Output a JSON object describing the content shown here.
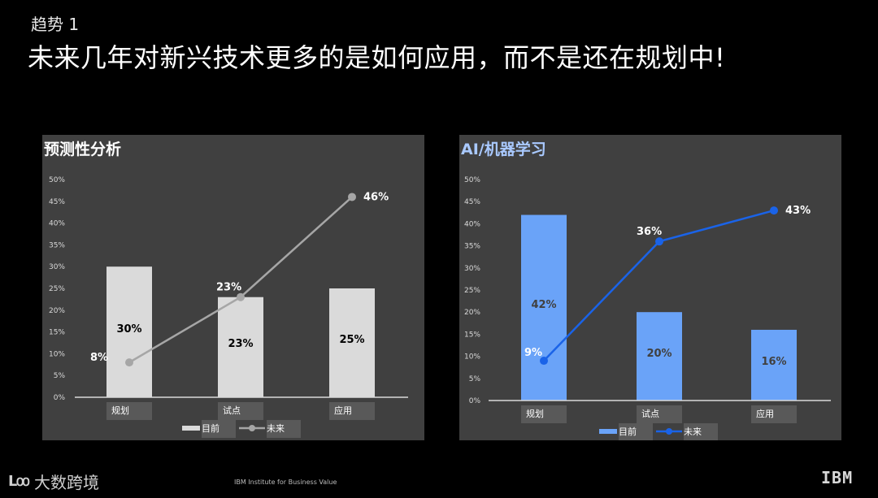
{
  "header": {
    "kicker": "趋势 1",
    "headline": "未来几年对新兴技术更多的是如何应用，而不是还在规划中!"
  },
  "footer": {
    "logo_text": "大数跨境",
    "source": "IBM Institute for Business Value",
    "brand": "IBM"
  },
  "chart_data": [
    {
      "type": "bar",
      "title": "预测性分析",
      "categories": [
        "规划",
        "试点",
        "应用"
      ],
      "series": [
        {
          "name": "目前",
          "kind": "bar",
          "values": [
            30,
            23,
            25
          ],
          "color": "#dadada"
        },
        {
          "name": "未来",
          "kind": "line",
          "values": [
            8,
            23,
            46
          ],
          "color": "#a6a6a6"
        }
      ],
      "yticks": [
        "0%",
        "5%",
        "10%",
        "15%",
        "20%",
        "25%",
        "30%",
        "35%",
        "40%",
        "45%",
        "50%"
      ],
      "ylim": [
        0,
        50
      ],
      "title_color": "#ffffff",
      "bar_label_color": "#000000",
      "line_label_color": "#ffffff",
      "legend_position": "bottom"
    },
    {
      "type": "bar",
      "title": "AI/机器学习",
      "categories": [
        "规划",
        "试点",
        "应用"
      ],
      "series": [
        {
          "name": "目前",
          "kind": "bar",
          "values": [
            42,
            20,
            16
          ],
          "color": "#6aa3f8"
        },
        {
          "name": "未来",
          "kind": "line",
          "values": [
            9,
            36,
            43
          ],
          "color": "#1a63e8"
        }
      ],
      "yticks": [
        "0%",
        "5%",
        "10%",
        "15%",
        "20%",
        "25%",
        "30%",
        "35%",
        "40%",
        "45%",
        "50%"
      ],
      "ylim": [
        0,
        50
      ],
      "title_color": "#a9c9ff",
      "bar_label_color": "#404040",
      "line_label_color": "#ffffff",
      "legend_position": "bottom"
    }
  ]
}
